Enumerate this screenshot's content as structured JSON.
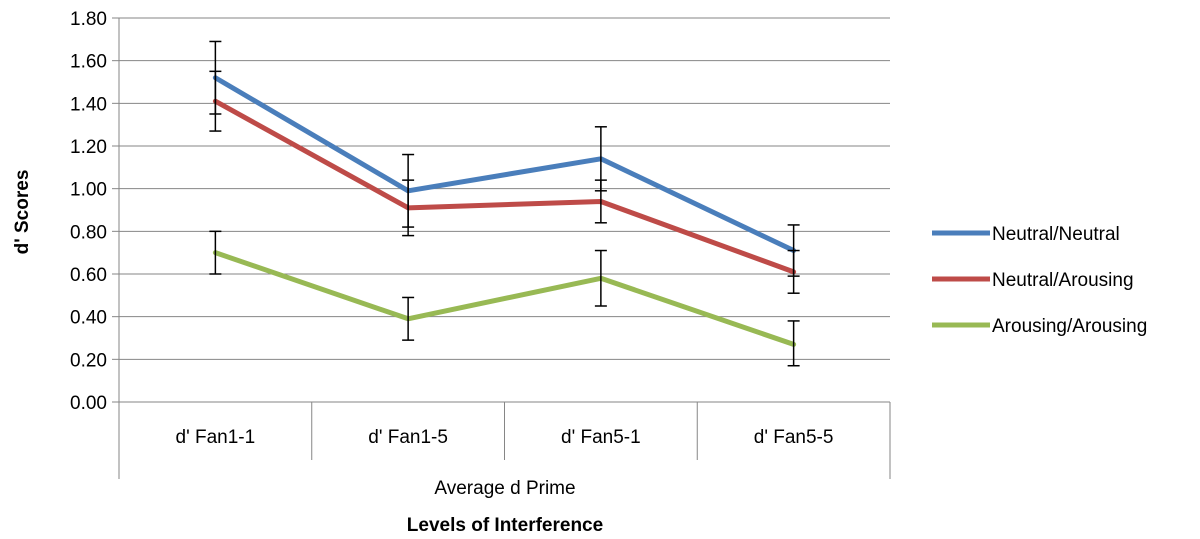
{
  "chart_data": {
    "type": "line",
    "title": "",
    "xlabel": "Levels of Interference",
    "ylabel": "d' Scores",
    "x_group_label": "Average d Prime",
    "categories": [
      "d' Fan1-1",
      "d' Fan1-5",
      "d' Fan5-1",
      "d' Fan5-5"
    ],
    "ylim": [
      0,
      1.8
    ],
    "yticks": [
      0,
      0.2,
      0.4,
      0.6,
      0.8,
      1.0,
      1.2,
      1.4,
      1.6,
      1.8
    ],
    "ytick_labels": [
      "0.00",
      "0.20",
      "0.40",
      "0.60",
      "0.80",
      "1.00",
      "1.20",
      "1.40",
      "1.60",
      "1.80"
    ],
    "grid": true,
    "legend_position": "right",
    "series": [
      {
        "name": "Neutral/Neutral",
        "color": "#4a7ebb",
        "values": [
          1.52,
          0.99,
          1.14,
          0.71
        ],
        "err_low": [
          1.35,
          0.82,
          0.99,
          0.59
        ],
        "err_high": [
          1.69,
          1.16,
          1.29,
          0.83
        ]
      },
      {
        "name": "Neutral/Arousing",
        "color": "#be4b48",
        "values": [
          1.41,
          0.91,
          0.94,
          0.61
        ],
        "err_low": [
          1.27,
          0.78,
          0.84,
          0.51
        ],
        "err_high": [
          1.55,
          1.04,
          1.04,
          0.71
        ]
      },
      {
        "name": "Arousing/Arousing",
        "color": "#98b954",
        "values": [
          0.7,
          0.39,
          0.58,
          0.27
        ],
        "err_low": [
          0.6,
          0.29,
          0.45,
          0.17
        ],
        "err_high": [
          0.8,
          0.49,
          0.71,
          0.38
        ]
      }
    ]
  }
}
